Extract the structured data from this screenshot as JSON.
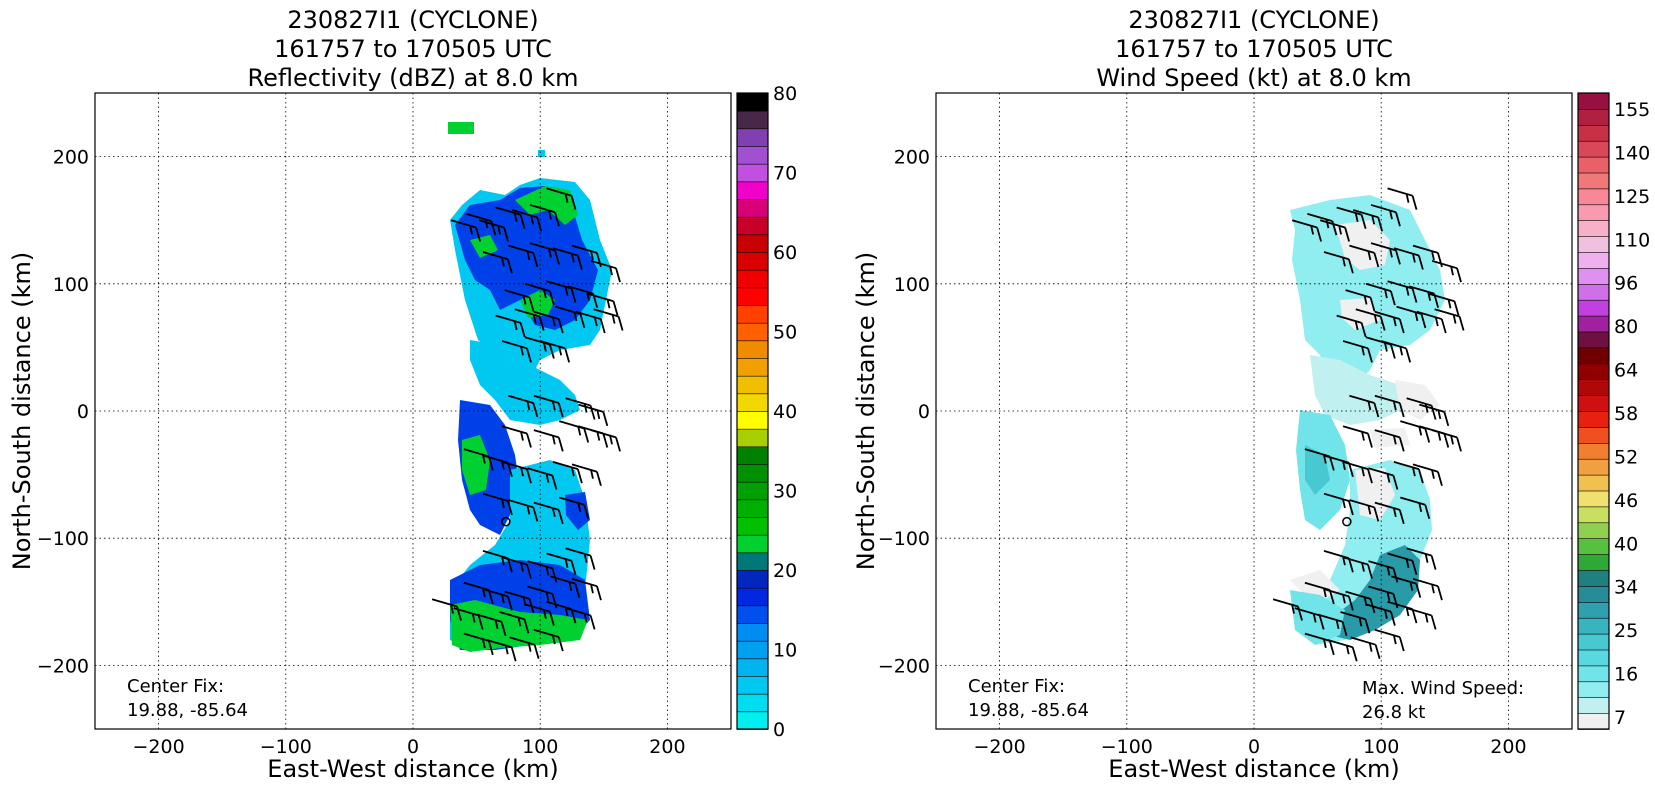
{
  "chart_data": [
    {
      "type": "heatmap",
      "title_lines": [
        "230827I1 (CYCLONE)",
        "161757 to 170505 UTC",
        "Reflectivity (dBZ) at 8.0 km"
      ],
      "xlabel": "East-West distance (km)",
      "ylabel": "North-South distance (km)",
      "xlim": [
        -250,
        250
      ],
      "ylim": [
        -250,
        250
      ],
      "xticks": [
        -200,
        -100,
        0,
        100,
        200
      ],
      "yticks": [
        -200,
        -100,
        0,
        100,
        200
      ],
      "grid": true,
      "center_fix_label": "Center Fix:",
      "center_fix_value": "19.88, -85.64",
      "center_marker": [
        73,
        -87
      ],
      "colorbar": {
        "min": 0,
        "max": 80,
        "ticks": [
          0,
          10,
          20,
          30,
          40,
          50,
          60,
          70,
          80
        ],
        "colors": [
          "#00f0f0",
          "#00dcf0",
          "#00c8f0",
          "#00b4f0",
          "#00a0f0",
          "#008cf0",
          "#0050f0",
          "#0028e0",
          "#0028c0",
          "#007878",
          "#00d030",
          "#00c000",
          "#00b000",
          "#00a000",
          "#009000",
          "#008000",
          "#a8d000",
          "#ffff00",
          "#f0d800",
          "#f0c000",
          "#f0a000",
          "#f08c00",
          "#ff6000",
          "#ff4000",
          "#ff0000",
          "#f00000",
          "#d80000",
          "#c80000",
          "#c80028",
          "#d80078",
          "#f000c8",
          "#c050e0",
          "#a050d0",
          "#8040b0",
          "#482848",
          "#000000"
        ]
      },
      "barbs": [
        [
          30,
          150
        ],
        [
          42,
          155
        ],
        [
          52,
          150
        ],
        [
          65,
          160
        ],
        [
          78,
          158
        ],
        [
          92,
          162
        ],
        [
          105,
          175
        ],
        [
          55,
          125
        ],
        [
          75,
          130
        ],
        [
          92,
          132
        ],
        [
          110,
          128
        ],
        [
          125,
          130
        ],
        [
          140,
          118
        ],
        [
          72,
          95
        ],
        [
          88,
          100
        ],
        [
          105,
          102
        ],
        [
          122,
          98
        ],
        [
          138,
          92
        ],
        [
          65,
          75
        ],
        [
          80,
          80
        ],
        [
          95,
          78
        ],
        [
          112,
          82
        ],
        [
          128,
          78
        ],
        [
          142,
          80
        ],
        [
          70,
          55
        ],
        [
          88,
          58
        ],
        [
          100,
          55
        ],
        [
          75,
          12
        ],
        [
          95,
          12
        ],
        [
          120,
          10
        ],
        [
          130,
          5
        ],
        [
          70,
          -12
        ],
        [
          95,
          -15
        ],
        [
          115,
          -8
        ],
        [
          130,
          -12
        ],
        [
          140,
          -15
        ],
        [
          40,
          -30
        ],
        [
          55,
          -35
        ],
        [
          70,
          -40
        ],
        [
          90,
          -45
        ],
        [
          110,
          -40
        ],
        [
          125,
          -42
        ],
        [
          55,
          -65
        ],
        [
          75,
          -70
        ],
        [
          95,
          -72
        ],
        [
          115,
          -68
        ],
        [
          55,
          -110
        ],
        [
          70,
          -115
        ],
        [
          90,
          -118
        ],
        [
          105,
          -112
        ],
        [
          120,
          -108
        ],
        [
          40,
          -135
        ],
        [
          55,
          -140
        ],
        [
          72,
          -142
        ],
        [
          90,
          -138
        ],
        [
          108,
          -130
        ],
        [
          125,
          -132
        ],
        [
          15,
          -148
        ],
        [
          32,
          -155
        ],
        [
          50,
          -160
        ],
        [
          68,
          -158
        ],
        [
          88,
          -152
        ],
        [
          105,
          -150
        ],
        [
          120,
          -155
        ],
        [
          40,
          -175
        ],
        [
          58,
          -180
        ],
        [
          76,
          -178
        ],
        [
          95,
          -172
        ]
      ]
    },
    {
      "type": "heatmap",
      "title_lines": [
        "230827I1 (CYCLONE)",
        "161757 to 170505 UTC",
        "Wind Speed (kt) at 8.0 km"
      ],
      "xlabel": "East-West distance (km)",
      "ylabel": "North-South distance (km)",
      "xlim": [
        -250,
        250
      ],
      "ylim": [
        -250,
        250
      ],
      "xticks": [
        -200,
        -100,
        0,
        100,
        200
      ],
      "yticks": [
        -200,
        -100,
        0,
        100,
        200
      ],
      "grid": true,
      "center_fix_label": "Center Fix:",
      "center_fix_value": "19.88, -85.64",
      "max_wind_label": "Max. Wind Speed:",
      "max_wind_value": "26.8 kt",
      "center_marker": [
        73,
        -87
      ],
      "colorbar": {
        "tick_labels": [
          "7",
          "16",
          "25",
          "34",
          "40",
          "46",
          "52",
          "58",
          "64",
          "80",
          "96",
          "110",
          "125",
          "140",
          "155"
        ],
        "colors": [
          "#f0f0f0",
          "#c0f0f0",
          "#90eef0",
          "#70e4e8",
          "#58d8e0",
          "#48c8d0",
          "#38b4c0",
          "#30a0b0",
          "#288c98",
          "#208080",
          "#30a838",
          "#58c040",
          "#90d050",
          "#c8e060",
          "#f0e070",
          "#f0c050",
          "#f0a040",
          "#f08030",
          "#f05020",
          "#e82010",
          "#d01010",
          "#b00808",
          "#900000",
          "#700000",
          "#701040",
          "#a020a0",
          "#c040e0",
          "#d070e8",
          "#e090f0",
          "#f0b0f0",
          "#f0c0e0",
          "#f8b0c8",
          "#f89ab0",
          "#f88898",
          "#f07878",
          "#e86068",
          "#d84858",
          "#c83048",
          "#b02040",
          "#981040"
        ]
      },
      "barbs": [
        [
          30,
          150
        ],
        [
          42,
          155
        ],
        [
          52,
          150
        ],
        [
          65,
          160
        ],
        [
          78,
          158
        ],
        [
          92,
          162
        ],
        [
          105,
          175
        ],
        [
          55,
          125
        ],
        [
          75,
          130
        ],
        [
          92,
          132
        ],
        [
          110,
          128
        ],
        [
          125,
          130
        ],
        [
          140,
          118
        ],
        [
          72,
          95
        ],
        [
          88,
          100
        ],
        [
          105,
          102
        ],
        [
          122,
          98
        ],
        [
          138,
          92
        ],
        [
          65,
          75
        ],
        [
          80,
          80
        ],
        [
          95,
          78
        ],
        [
          112,
          82
        ],
        [
          128,
          78
        ],
        [
          142,
          80
        ],
        [
          70,
          55
        ],
        [
          88,
          58
        ],
        [
          100,
          55
        ],
        [
          75,
          12
        ],
        [
          95,
          12
        ],
        [
          120,
          10
        ],
        [
          130,
          5
        ],
        [
          70,
          -12
        ],
        [
          95,
          -15
        ],
        [
          115,
          -8
        ],
        [
          130,
          -12
        ],
        [
          140,
          -15
        ],
        [
          40,
          -30
        ],
        [
          55,
          -35
        ],
        [
          70,
          -40
        ],
        [
          90,
          -45
        ],
        [
          110,
          -40
        ],
        [
          125,
          -42
        ],
        [
          55,
          -65
        ],
        [
          75,
          -70
        ],
        [
          95,
          -72
        ],
        [
          115,
          -68
        ],
        [
          55,
          -110
        ],
        [
          70,
          -115
        ],
        [
          90,
          -118
        ],
        [
          105,
          -112
        ],
        [
          120,
          -108
        ],
        [
          40,
          -135
        ],
        [
          55,
          -140
        ],
        [
          72,
          -142
        ],
        [
          90,
          -138
        ],
        [
          108,
          -130
        ],
        [
          125,
          -132
        ],
        [
          15,
          -148
        ],
        [
          32,
          -155
        ],
        [
          50,
          -160
        ],
        [
          68,
          -158
        ],
        [
          88,
          -152
        ],
        [
          105,
          -150
        ],
        [
          120,
          -155
        ],
        [
          40,
          -175
        ],
        [
          58,
          -180
        ],
        [
          76,
          -178
        ],
        [
          95,
          -172
        ]
      ]
    }
  ]
}
